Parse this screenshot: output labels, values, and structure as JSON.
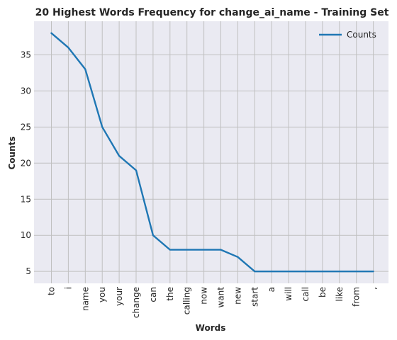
{
  "chart_data": {
    "type": "line",
    "title": "20 Highest Words Frequency for change_ai_name - Training Set",
    "xlabel": "Words",
    "ylabel": "Counts",
    "categories": [
      "to",
      "i",
      "name",
      "you",
      "your",
      "change",
      "can",
      "the",
      "calling",
      "now",
      "want",
      "new",
      "start",
      "a",
      "will",
      "call",
      "be",
      "like",
      "from",
      ","
    ],
    "series": [
      {
        "name": "Counts",
        "values": [
          38,
          36,
          33,
          25,
          21,
          19,
          10,
          8,
          8,
          8,
          8,
          7,
          5,
          5,
          5,
          5,
          5,
          5,
          5,
          5
        ]
      }
    ],
    "ylim": [
      3.35,
      39.65
    ],
    "yticks": [
      5,
      10,
      15,
      20,
      25,
      30,
      35
    ],
    "grid": true,
    "legend_position": "top-right",
    "colors": {
      "background": "#EAEAF2",
      "grid": "#C0C0C0",
      "line": "#1F77B4"
    }
  }
}
